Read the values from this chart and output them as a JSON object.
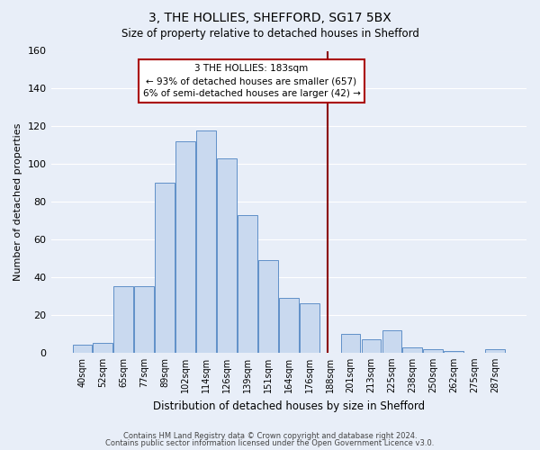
{
  "title": "3, THE HOLLIES, SHEFFORD, SG17 5BX",
  "subtitle": "Size of property relative to detached houses in Shefford",
  "xlabel": "Distribution of detached houses by size in Shefford",
  "ylabel": "Number of detached properties",
  "bar_labels": [
    "40sqm",
    "52sqm",
    "65sqm",
    "77sqm",
    "89sqm",
    "102sqm",
    "114sqm",
    "126sqm",
    "139sqm",
    "151sqm",
    "164sqm",
    "176sqm",
    "188sqm",
    "201sqm",
    "213sqm",
    "225sqm",
    "238sqm",
    "250sqm",
    "262sqm",
    "275sqm",
    "287sqm"
  ],
  "bar_values": [
    4,
    5,
    35,
    35,
    90,
    112,
    118,
    103,
    73,
    49,
    29,
    26,
    0,
    10,
    7,
    12,
    3,
    2,
    1,
    0,
    2
  ],
  "bar_color": "#c9d9ef",
  "bar_edge_color": "#6090c8",
  "annotation_line_color": "#8b0000",
  "annotation_box_text": "3 THE HOLLIES: 183sqm\n← 93% of detached houses are smaller (657)\n6% of semi-detached houses are larger (42) →",
  "annotation_box_color": "#aa0000",
  "annotation_box_bg": "#ffffff",
  "ylim": [
    0,
    160
  ],
  "yticks": [
    0,
    20,
    40,
    60,
    80,
    100,
    120,
    140,
    160
  ],
  "background_color": "#e8eef8",
  "grid_color": "#ffffff",
  "footer_line1": "Contains HM Land Registry data © Crown copyright and database right 2024.",
  "footer_line2": "Contains public sector information licensed under the Open Government Licence v3.0."
}
